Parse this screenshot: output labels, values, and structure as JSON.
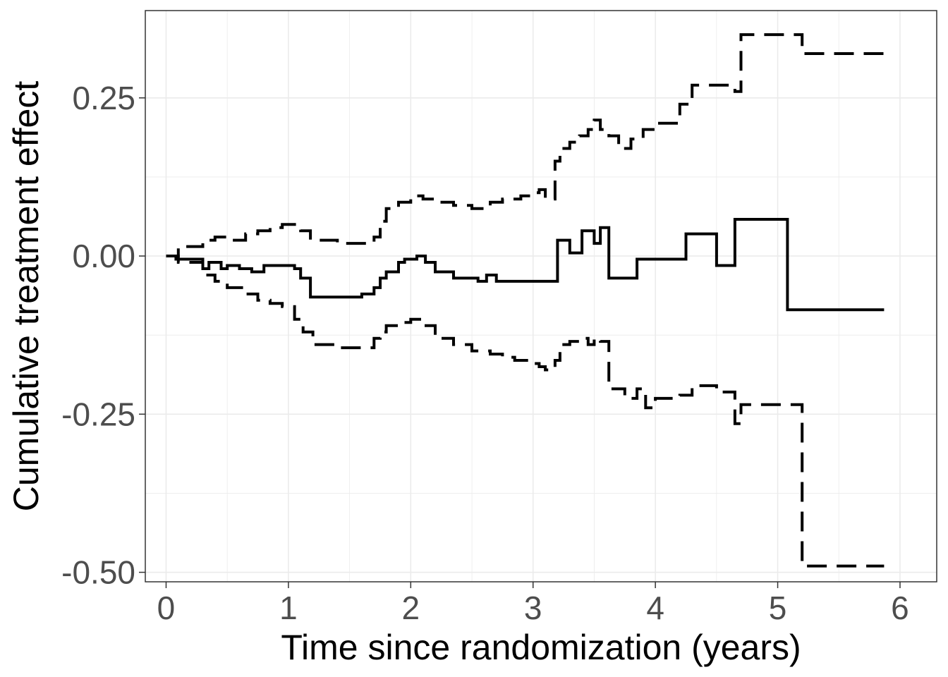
{
  "chart_data": {
    "type": "line",
    "title": "",
    "xlabel": "Time since randomization (years)",
    "ylabel": "Cumulative treatment effect",
    "xlim": [
      -0.17,
      6.3
    ],
    "ylim": [
      -0.515,
      0.388
    ],
    "x_ticks": [
      0,
      1,
      2,
      3,
      4,
      5,
      6
    ],
    "x_tick_labels": [
      "0",
      "1",
      "2",
      "3",
      "4",
      "5",
      "6"
    ],
    "y_ticks": [
      0.25,
      0,
      -0.25,
      -0.5
    ],
    "y_tick_labels": [
      "0.25",
      "0.00",
      "-0.25",
      "-0.50"
    ],
    "grid": true,
    "legend": "none",
    "step": true,
    "series": [
      {
        "style": "solid",
        "x": [
          0,
          0.08,
          0.3,
          0.35,
          0.45,
          0.5,
          0.6,
          0.7,
          0.8,
          0.95,
          1.05,
          1.1,
          1.18,
          1.3,
          1.6,
          1.7,
          1.75,
          1.8,
          1.9,
          1.95,
          2.05,
          2.12,
          2.2,
          2.35,
          2.55,
          2.62,
          2.7,
          2.75,
          3.05,
          3.2,
          3.3,
          3.4,
          3.5,
          3.55,
          3.62,
          3.75,
          3.85,
          3.92,
          4.25,
          4.5,
          4.65,
          5.08,
          5.87
        ],
        "y": [
          0,
          -0.005,
          -0.02,
          -0.01,
          -0.02,
          -0.015,
          -0.02,
          -0.025,
          -0.015,
          -0.015,
          -0.02,
          -0.035,
          -0.065,
          -0.065,
          -0.06,
          -0.05,
          -0.035,
          -0.025,
          -0.01,
          -0.005,
          0.0,
          -0.01,
          -0.025,
          -0.035,
          -0.04,
          -0.03,
          -0.04,
          -0.04,
          -0.04,
          0.025,
          0.005,
          0.04,
          0.02,
          0.045,
          -0.035,
          -0.035,
          -0.005,
          -0.005,
          0.035,
          -0.015,
          0.058,
          -0.085,
          -0.085
        ]
      },
      {
        "style": "dashed",
        "x": [
          0,
          0.1,
          0.3,
          0.4,
          0.5,
          0.65,
          0.75,
          0.85,
          0.95,
          1.05,
          1.1,
          1.18,
          1.4,
          1.6,
          1.7,
          1.75,
          1.8,
          1.9,
          2.0,
          2.1,
          2.2,
          2.35,
          2.5,
          2.65,
          2.75,
          2.9,
          3.0,
          3.05,
          3.1,
          3.18,
          3.22,
          3.3,
          3.38,
          3.45,
          3.5,
          3.55,
          3.62,
          3.7,
          3.8,
          3.9,
          3.95,
          4.0,
          4.2,
          4.3,
          4.5,
          4.65,
          4.7,
          5.08,
          5.2,
          5.87
        ],
        "y": [
          0,
          0.015,
          0.025,
          0.03,
          0.025,
          0.035,
          0.04,
          0.045,
          0.05,
          0.045,
          0.04,
          0.025,
          0.02,
          0.02,
          0.03,
          0.055,
          0.075,
          0.085,
          0.095,
          0.09,
          0.085,
          0.08,
          0.075,
          0.085,
          0.09,
          0.095,
          0.1,
          0.105,
          0.09,
          0.15,
          0.17,
          0.18,
          0.19,
          0.2,
          0.215,
          0.2,
          0.19,
          0.17,
          0.185,
          0.2,
          0.2,
          0.21,
          0.24,
          0.27,
          0.27,
          0.26,
          0.35,
          0.35,
          0.32,
          0.32
        ]
      },
      {
        "style": "dashed",
        "x": [
          0,
          0.1,
          0.3,
          0.4,
          0.5,
          0.65,
          0.75,
          0.85,
          0.95,
          1.05,
          1.12,
          1.2,
          1.4,
          1.6,
          1.7,
          1.75,
          1.8,
          1.9,
          2.0,
          2.1,
          2.2,
          2.35,
          2.5,
          2.65,
          2.75,
          2.85,
          3.0,
          3.05,
          3.1,
          3.18,
          3.22,
          3.3,
          3.38,
          3.45,
          3.5,
          3.55,
          3.62,
          3.75,
          3.85,
          3.92,
          4.0,
          4.2,
          4.3,
          4.5,
          4.65,
          4.7,
          5.08,
          5.2,
          5.87
        ],
        "y": [
          0,
          -0.01,
          -0.03,
          -0.04,
          -0.05,
          -0.06,
          -0.07,
          -0.075,
          -0.08,
          -0.1,
          -0.12,
          -0.14,
          -0.145,
          -0.145,
          -0.13,
          -0.12,
          -0.11,
          -0.105,
          -0.1,
          -0.11,
          -0.13,
          -0.14,
          -0.15,
          -0.155,
          -0.16,
          -0.165,
          -0.17,
          -0.175,
          -0.18,
          -0.165,
          -0.14,
          -0.135,
          -0.13,
          -0.14,
          -0.13,
          -0.135,
          -0.21,
          -0.225,
          -0.21,
          -0.24,
          -0.225,
          -0.22,
          -0.205,
          -0.215,
          -0.265,
          -0.235,
          -0.235,
          -0.49,
          -0.49
        ]
      }
    ]
  }
}
